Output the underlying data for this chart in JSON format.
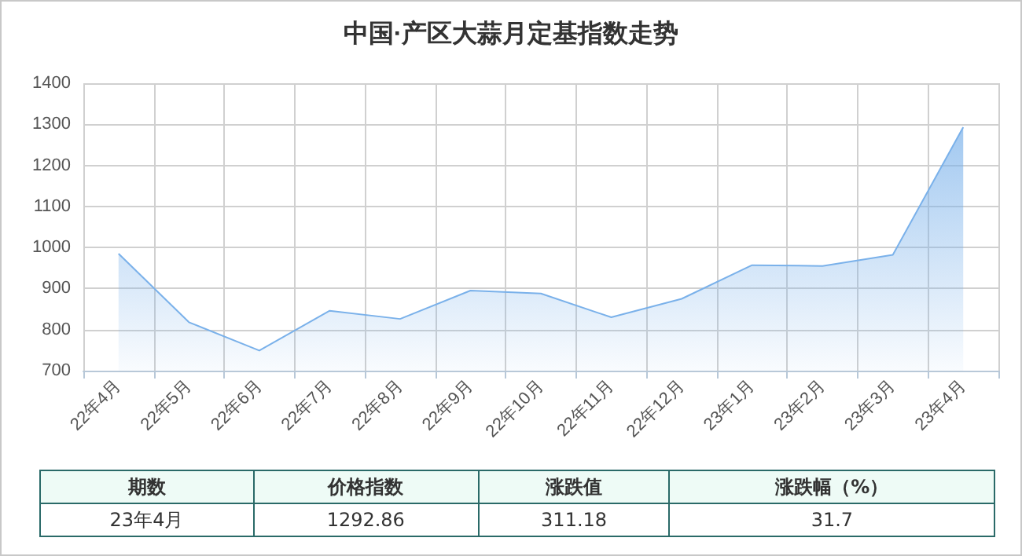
{
  "chart_data": {
    "type": "area",
    "title": "中国·产区大蒜月定基指数走势",
    "categories": [
      "22年4月",
      "22年5月",
      "22年6月",
      "22年7月",
      "22年8月",
      "22年9月",
      "22年10月",
      "22年11月",
      "22年12月",
      "23年1月",
      "23年2月",
      "23年3月",
      "23年4月"
    ],
    "values": [
      985,
      818,
      749,
      846,
      826,
      895,
      888,
      830,
      875,
      957,
      955,
      982,
      1293
    ],
    "color": "#7ab1ea",
    "ylim": [
      700,
      1400
    ],
    "yticks": [
      700,
      800,
      900,
      1000,
      1100,
      1200,
      1300,
      1400
    ],
    "grid": true,
    "annotations": [
      "期数",
      "价格指数",
      "涨跌值",
      "涨跌幅（%）",
      "23年4月",
      "1292.86",
      "311.18",
      "31.7"
    ]
  }
}
